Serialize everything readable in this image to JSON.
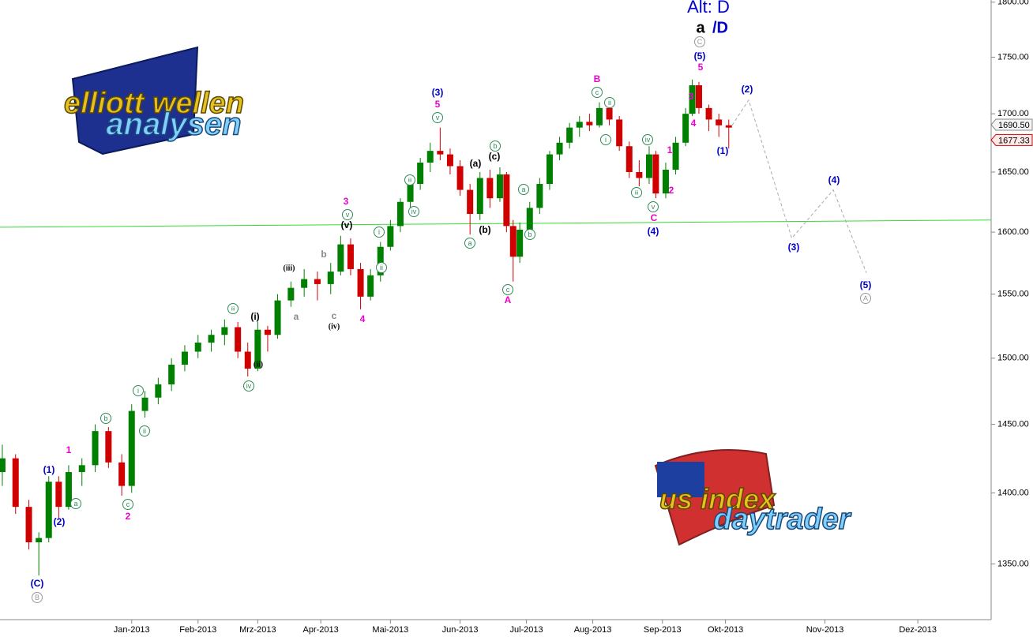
{
  "chart_data": {
    "type": "candlestick",
    "title": "Alt: D",
    "subtitle_main": "a",
    "subtitle_alt": "/D",
    "up_color": "#008000",
    "down_color": "#d00000",
    "log_scale": true,
    "ylim": [
      1312,
      1802
    ],
    "yticks": [
      {
        "value": 1350,
        "label": "1350.00"
      },
      {
        "value": 1400,
        "label": "1400.00"
      },
      {
        "value": 1450,
        "label": "1450.00"
      },
      {
        "value": 1500,
        "label": "1500.00"
      },
      {
        "value": 1550,
        "label": "1550.00"
      },
      {
        "value": 1600,
        "label": "1600.00"
      },
      {
        "value": 1650,
        "label": "1650.00"
      },
      {
        "value": 1700,
        "label": "1700.00"
      },
      {
        "value": 1750,
        "label": "1750.00"
      },
      {
        "value": 1800,
        "label": "1800.00"
      }
    ],
    "xlim": [
      -0.7,
      298.1
    ],
    "xticks": [
      {
        "value": 39,
        "label": "Jan-2013"
      },
      {
        "value": 59,
        "label": "Feb-2013"
      },
      {
        "value": 77,
        "label": "Mrz-2013"
      },
      {
        "value": 96,
        "label": "Apr-2013"
      },
      {
        "value": 117,
        "label": "Mai-2013"
      },
      {
        "value": 138,
        "label": "Jun-2013"
      },
      {
        "value": 158,
        "label": "Jul-2013"
      },
      {
        "value": 178,
        "label": "Aug-2013"
      },
      {
        "value": 199,
        "label": "Sep-2013"
      },
      {
        "value": 218,
        "label": "Okt-2013"
      },
      {
        "value": 248,
        "label": "Nov-2013"
      },
      {
        "value": 276,
        "label": "Dez-2013"
      }
    ],
    "candles": {
      "x": [
        0,
        4,
        8,
        11,
        14,
        17,
        20,
        24,
        28,
        32,
        36,
        39,
        43,
        47,
        51,
        55,
        59,
        63,
        67,
        71,
        74,
        77,
        80,
        83,
        87,
        91,
        95,
        99,
        102,
        105,
        108,
        111,
        114,
        117,
        120,
        123,
        126,
        129,
        132,
        135,
        138,
        141,
        144,
        147,
        150,
        152,
        154,
        156,
        159,
        162,
        165,
        168,
        171,
        174,
        177,
        180,
        183,
        186,
        189,
        192,
        195,
        197,
        200,
        203,
        206,
        208,
        210,
        213,
        216,
        219
      ],
      "open": [
        1415,
        1425,
        1390,
        1365,
        1368,
        1408,
        1390,
        1415,
        1420,
        1445,
        1422,
        1405,
        1460,
        1470,
        1480,
        1495,
        1505,
        1512,
        1518,
        1524,
        1505,
        1492,
        1522,
        1518,
        1545,
        1555,
        1562,
        1558,
        1568,
        1590,
        1570,
        1548,
        1565,
        1588,
        1605,
        1625,
        1640,
        1658,
        1668,
        1665,
        1655,
        1635,
        1615,
        1645,
        1628,
        1648,
        1605,
        1580,
        1602,
        1620,
        1640,
        1665,
        1675,
        1688,
        1693,
        1690,
        1705,
        1695,
        1672,
        1650,
        1645,
        1665,
        1632,
        1652,
        1675,
        1700,
        1725,
        1705,
        1695,
        1690
      ],
      "high": [
        1435,
        1428,
        1395,
        1372,
        1412,
        1412,
        1420,
        1425,
        1450,
        1448,
        1428,
        1465,
        1475,
        1485,
        1500,
        1510,
        1518,
        1522,
        1530,
        1528,
        1512,
        1528,
        1525,
        1550,
        1560,
        1570,
        1568,
        1575,
        1597,
        1595,
        1575,
        1570,
        1592,
        1610,
        1628,
        1645,
        1662,
        1675,
        1688,
        1670,
        1660,
        1640,
        1650,
        1652,
        1654,
        1650,
        1610,
        1608,
        1625,
        1645,
        1668,
        1680,
        1692,
        1698,
        1700,
        1710,
        1712,
        1698,
        1676,
        1660,
        1672,
        1668,
        1658,
        1680,
        1705,
        1730,
        1728,
        1708,
        1700,
        1695
      ],
      "low": [
        1405,
        1385,
        1360,
        1342,
        1365,
        1382,
        1388,
        1405,
        1415,
        1418,
        1398,
        1400,
        1455,
        1465,
        1475,
        1490,
        1500,
        1505,
        1510,
        1500,
        1486,
        1490,
        1505,
        1515,
        1540,
        1548,
        1545,
        1550,
        1565,
        1565,
        1538,
        1545,
        1560,
        1585,
        1600,
        1620,
        1635,
        1650,
        1660,
        1648,
        1630,
        1598,
        1610,
        1620,
        1625,
        1600,
        1560,
        1575,
        1598,
        1615,
        1635,
        1660,
        1670,
        1680,
        1685,
        1688,
        1690,
        1668,
        1645,
        1638,
        1640,
        1628,
        1628,
        1648,
        1672,
        1698,
        1700,
        1685,
        1680,
        1670
      ],
      "close": [
        1425,
        1390,
        1365,
        1368,
        1408,
        1390,
        1415,
        1420,
        1445,
        1422,
        1405,
        1460,
        1470,
        1480,
        1495,
        1505,
        1512,
        1518,
        1524,
        1505,
        1492,
        1522,
        1518,
        1545,
        1555,
        1562,
        1558,
        1568,
        1590,
        1570,
        1548,
        1565,
        1588,
        1605,
        1625,
        1640,
        1658,
        1668,
        1665,
        1655,
        1635,
        1615,
        1645,
        1628,
        1648,
        1605,
        1580,
        1602,
        1620,
        1640,
        1665,
        1675,
        1688,
        1693,
        1690,
        1705,
        1695,
        1672,
        1650,
        1645,
        1665,
        1632,
        1652,
        1675,
        1700,
        1725,
        1705,
        1695,
        1690,
        1688
      ]
    },
    "trendline": {
      "color": "#33dd33",
      "x": [
        -0.7,
        298.1
      ],
      "y": [
        1604,
        1610
      ]
    },
    "projection": {
      "color": "#aaaaaa",
      "x": [
        220,
        225,
        238,
        250.5,
        260.5
      ],
      "y": [
        1690,
        1712,
        1595,
        1635,
        1567
      ]
    },
    "price_tags": [
      {
        "value": 1690.5,
        "label": "1690.50",
        "color": "#888888"
      },
      {
        "value": 1677.33,
        "label": "1677.33",
        "color": "#cc0000"
      }
    ],
    "annotations": [
      {
        "text": "(C)",
        "color": "#0000cc"
      },
      {
        "text": "(1)",
        "color": "#0000cc"
      },
      {
        "text": "(2)",
        "color": "#0000cc"
      },
      {
        "text": "(3)",
        "color": "#0000cc"
      },
      {
        "text": "(4)",
        "color": "#0000cc"
      },
      {
        "text": "(5)",
        "color": "#0000cc"
      },
      {
        "text": "(1)",
        "color": "#0000cc"
      },
      {
        "text": "(2)",
        "color": "#0000cc"
      },
      {
        "text": "(3)",
        "color": "#0000cc"
      },
      {
        "text": "(4)",
        "color": "#0000cc"
      },
      {
        "text": "(5)",
        "color": "#0000cc"
      },
      {
        "text": "(a)",
        "color": "#000000"
      },
      {
        "text": "(b)",
        "color": "#000000"
      },
      {
        "text": "(c)",
        "color": "#000000"
      },
      {
        "text": "(i)",
        "color": "#000000"
      },
      {
        "text": "(ii)",
        "color": "#000000"
      },
      {
        "text": "(iii)",
        "color": "#000000"
      },
      {
        "text": "(iv)",
        "color": "#000000"
      },
      {
        "text": "(v)",
        "color": "#000000"
      },
      {
        "text": "1",
        "color": "#ee00cc"
      },
      {
        "text": "2",
        "color": "#ee00cc"
      },
      {
        "text": "3",
        "color": "#ee00cc"
      },
      {
        "text": "4",
        "color": "#ee00cc"
      },
      {
        "text": "5",
        "color": "#ee00cc"
      },
      {
        "text": "A",
        "color": "#ee00cc"
      },
      {
        "text": "B",
        "color": "#ee00cc"
      },
      {
        "text": "C",
        "color": "#ee00cc"
      },
      {
        "text": "1",
        "color": "#ee00cc"
      },
      {
        "text": "2",
        "color": "#ee00cc"
      },
      {
        "text": "3",
        "color": "#ee00cc"
      },
      {
        "text": "4",
        "color": "#ee00cc"
      },
      {
        "text": "5",
        "color": "#ee00cc"
      },
      {
        "text": "b",
        "color": "#888888"
      },
      {
        "text": "a",
        "color": "#888888"
      },
      {
        "text": "c",
        "color": "#888888"
      },
      {
        "text": "a",
        "color": "#2e8b57",
        "circled": true
      },
      {
        "text": "b",
        "color": "#2e8b57",
        "circled": true
      },
      {
        "text": "c",
        "color": "#2e8b57",
        "circled": true
      },
      {
        "text": "i",
        "color": "#2e8b57",
        "circled": true
      },
      {
        "text": "ii",
        "color": "#2e8b57",
        "circled": true
      },
      {
        "text": "iii",
        "color": "#2e8b57",
        "circled": true
      },
      {
        "text": "iv",
        "color": "#2e8b57",
        "circled": true
      },
      {
        "text": "i",
        "color": "#2e8b57",
        "circled": true
      },
      {
        "text": "ii",
        "color": "#2e8b57",
        "circled": true
      },
      {
        "text": "iii",
        "color": "#2e8b57",
        "circled": true
      },
      {
        "text": "iv",
        "color": "#2e8b57",
        "circled": true
      },
      {
        "text": "v",
        "color": "#2e8b57",
        "circled": true
      },
      {
        "text": "v",
        "color": "#2e8b57",
        "circled": true
      },
      {
        "text": "a",
        "color": "#2e8b57",
        "circled": true
      },
      {
        "text": "b",
        "color": "#2e8b57",
        "circled": true
      },
      {
        "text": "c",
        "color": "#2e8b57",
        "circled": true
      },
      {
        "text": "a",
        "color": "#2e8b57",
        "circled": true
      },
      {
        "text": "b",
        "color": "#2e8b57",
        "circled": true
      },
      {
        "text": "c",
        "color": "#2e8b57",
        "circled": true
      },
      {
        "text": "ii",
        "color": "#2e8b57",
        "circled": true
      },
      {
        "text": "i",
        "color": "#2e8b57",
        "circled": true
      },
      {
        "text": "iii",
        "color": "#2e8b57",
        "circled": true
      },
      {
        "text": "iv",
        "color": "#2e8b57",
        "circled": true
      },
      {
        "text": "v",
        "color": "#2e8b57",
        "circled": true
      },
      {
        "text": "B",
        "color": "#999999",
        "circled": true
      },
      {
        "text": "C",
        "color": "#999999",
        "circled": true
      },
      {
        "text": "A",
        "color": "#999999",
        "circled": true
      }
    ],
    "logos": {
      "top_left": [
        "elliott wellen",
        "analysen"
      ],
      "bottom_right": [
        "us index",
        "daytrader"
      ]
    }
  }
}
